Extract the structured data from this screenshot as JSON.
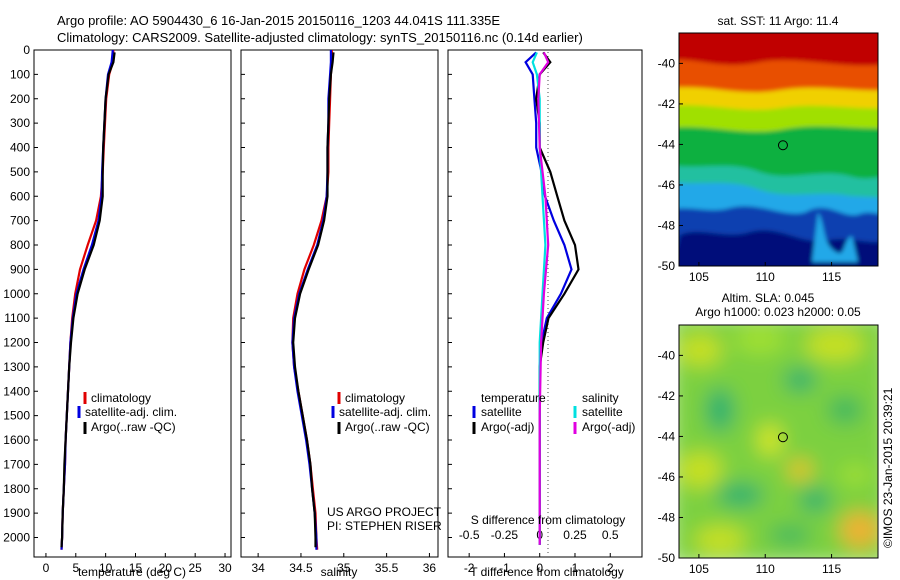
{
  "title_line1": "Argo profile: AO 5904430_6 16-Jan-2015 20150116_1203 44.041S 111.335E",
  "title_line2": "Climatology: CARS2009. Satellite-adjusted climatology: synTS_20150116.nc (0.14d earlier)",
  "sst_title": "sat. SST: 11 Argo: 11.4",
  "sla_title1": "Altim. SLA: 0.045",
  "sla_title2": "Argo h1000: 0.023 h2000: 0.05",
  "watermark": "©IMOS 23-Jan-2015 20:39:21",
  "project_line1": "US ARGO PROJECT",
  "project_line2": "PI: STEPHEN RISER",
  "legend_profile": [
    "climatology",
    "satellite-adj. clim.",
    "Argo(..raw -QC)"
  ],
  "legend_diff_headers": [
    "temperature",
    "salinity"
  ],
  "legend_diff_items": [
    "satellite",
    "Argo(-adj)",
    "satellite",
    "Argo(-adj)"
  ],
  "colors": {
    "climatology": "#e00000",
    "satellite": "#0000e0",
    "argo": "#000000",
    "sal_sat": "#00e0e0",
    "sal_argo": "#e000e0"
  },
  "chart_data": [
    {
      "type": "line",
      "xlabel": "temperature (deg C)",
      "ylabel": "",
      "xlim": [
        -2,
        31
      ],
      "ylim": [
        2080,
        0
      ],
      "xticks": [
        "0",
        "5",
        "10",
        "15",
        "20",
        "25",
        "30"
      ],
      "yticks": [
        "0",
        "100",
        "200",
        "300",
        "400",
        "500",
        "600",
        "700",
        "800",
        "900",
        "1000",
        "1100",
        "1200",
        "1300",
        "1400",
        "1500",
        "1600",
        "1700",
        "1800",
        "1900",
        "2000"
      ],
      "series": [
        {
          "name": "climatology",
          "points": [
            [
              11.3,
              0
            ],
            [
              11.2,
              50
            ],
            [
              10.6,
              100
            ],
            [
              10.1,
              200
            ],
            [
              9.9,
              300
            ],
            [
              9.7,
              400
            ],
            [
              9.5,
              500
            ],
            [
              9.2,
              600
            ],
            [
              8.4,
              700
            ],
            [
              7.0,
              800
            ],
            [
              5.7,
              900
            ],
            [
              4.9,
              1000
            ],
            [
              4.4,
              1100
            ],
            [
              4.1,
              1200
            ],
            [
              3.9,
              1300
            ],
            [
              3.7,
              1400
            ],
            [
              3.5,
              1500
            ],
            [
              3.3,
              1600
            ],
            [
              3.2,
              1700
            ],
            [
              3.0,
              1800
            ],
            [
              2.8,
              1900
            ],
            [
              2.7,
              2000
            ],
            [
              2.6,
              2050
            ]
          ]
        },
        {
          "name": "satellite-adj. clim.",
          "points": [
            [
              11.2,
              0
            ],
            [
              11.0,
              50
            ],
            [
              10.4,
              100
            ],
            [
              10.0,
              200
            ],
            [
              9.8,
              300
            ],
            [
              9.6,
              400
            ],
            [
              9.4,
              500
            ],
            [
              9.3,
              600
            ],
            [
              8.8,
              700
            ],
            [
              7.7,
              800
            ],
            [
              6.3,
              900
            ],
            [
              5.1,
              1000
            ],
            [
              4.5,
              1100
            ],
            [
              4.1,
              1200
            ],
            [
              3.9,
              1300
            ],
            [
              3.7,
              1400
            ],
            [
              3.5,
              1500
            ],
            [
              3.3,
              1600
            ],
            [
              3.2,
              1700
            ],
            [
              3.0,
              1800
            ],
            [
              2.8,
              1900
            ],
            [
              2.7,
              2000
            ],
            [
              2.6,
              2050
            ]
          ]
        },
        {
          "name": "Argo(..raw -QC)",
          "points": [
            [
              11.5,
              10
            ],
            [
              11.3,
              50
            ],
            [
              10.5,
              100
            ],
            [
              10.0,
              200
            ],
            [
              9.8,
              300
            ],
            [
              9.6,
              400
            ],
            [
              9.5,
              500
            ],
            [
              9.5,
              600
            ],
            [
              9.0,
              700
            ],
            [
              8.0,
              800
            ],
            [
              6.5,
              900
            ],
            [
              5.3,
              1000
            ],
            [
              4.6,
              1100
            ],
            [
              4.2,
              1200
            ],
            [
              3.9,
              1300
            ],
            [
              3.7,
              1400
            ],
            [
              3.5,
              1500
            ],
            [
              3.3,
              1600
            ],
            [
              3.1,
              1700
            ],
            [
              3.0,
              1800
            ],
            [
              2.8,
              1900
            ],
            [
              2.7,
              2000
            ],
            [
              2.6,
              2040
            ]
          ]
        }
      ]
    },
    {
      "type": "line",
      "xlabel": "salinity",
      "ylabel": "",
      "xlim": [
        33.8,
        36.1
      ],
      "ylim": [
        2080,
        0
      ],
      "xticks": [
        "34",
        "34.5",
        "35",
        "35.5",
        "36"
      ],
      "series": [
        {
          "name": "climatology",
          "points": [
            [
              34.86,
              0
            ],
            [
              34.86,
              50
            ],
            [
              34.85,
              100
            ],
            [
              34.84,
              200
            ],
            [
              34.83,
              300
            ],
            [
              34.82,
              400
            ],
            [
              34.82,
              500
            ],
            [
              34.8,
              600
            ],
            [
              34.74,
              700
            ],
            [
              34.65,
              800
            ],
            [
              34.54,
              900
            ],
            [
              34.46,
              1000
            ],
            [
              34.41,
              1100
            ],
            [
              34.4,
              1200
            ],
            [
              34.42,
              1300
            ],
            [
              34.47,
              1400
            ],
            [
              34.52,
              1500
            ],
            [
              34.57,
              1600
            ],
            [
              34.61,
              1700
            ],
            [
              34.64,
              1800
            ],
            [
              34.67,
              1900
            ],
            [
              34.68,
              2000
            ],
            [
              34.69,
              2050
            ]
          ]
        },
        {
          "name": "satellite-adj. clim.",
          "points": [
            [
              34.85,
              0
            ],
            [
              34.85,
              50
            ],
            [
              34.84,
              100
            ],
            [
              34.82,
              200
            ],
            [
              34.82,
              300
            ],
            [
              34.81,
              400
            ],
            [
              34.81,
              500
            ],
            [
              34.8,
              600
            ],
            [
              34.76,
              700
            ],
            [
              34.69,
              800
            ],
            [
              34.58,
              900
            ],
            [
              34.48,
              1000
            ],
            [
              34.42,
              1100
            ],
            [
              34.4,
              1200
            ],
            [
              34.42,
              1300
            ],
            [
              34.46,
              1400
            ],
            [
              34.51,
              1500
            ],
            [
              34.56,
              1600
            ],
            [
              34.6,
              1700
            ],
            [
              34.63,
              1800
            ],
            [
              34.66,
              1900
            ],
            [
              34.68,
              2000
            ],
            [
              34.68,
              2050
            ]
          ]
        },
        {
          "name": "Argo(..raw -QC)",
          "points": [
            [
              34.88,
              10
            ],
            [
              34.87,
              50
            ],
            [
              34.85,
              100
            ],
            [
              34.83,
              200
            ],
            [
              34.82,
              300
            ],
            [
              34.81,
              400
            ],
            [
              34.81,
              500
            ],
            [
              34.81,
              600
            ],
            [
              34.77,
              700
            ],
            [
              34.7,
              800
            ],
            [
              34.59,
              900
            ],
            [
              34.49,
              1000
            ],
            [
              34.43,
              1100
            ],
            [
              34.41,
              1200
            ],
            [
              34.43,
              1300
            ],
            [
              34.47,
              1400
            ],
            [
              34.52,
              1500
            ],
            [
              34.57,
              1600
            ],
            [
              34.61,
              1700
            ],
            [
              34.63,
              1800
            ],
            [
              34.66,
              1900
            ],
            [
              34.67,
              2000
            ],
            [
              34.67,
              2040
            ]
          ]
        }
      ]
    },
    {
      "type": "line",
      "xlabel": "T difference from climatology",
      "x2label": "S difference from climatology",
      "xlim": [
        -2.6,
        2.9
      ],
      "ylim": [
        2080,
        0
      ],
      "xticks": [
        "-2",
        "-1",
        "0",
        "1",
        "2"
      ],
      "x2ticks": [
        "-0.5",
        "-0.25",
        "0",
        "0.25",
        "0.5"
      ],
      "series": [
        {
          "name": "temperature satellite",
          "points": [
            [
              -0.1,
              10
            ],
            [
              -0.4,
              50
            ],
            [
              -0.2,
              100
            ],
            [
              -0.15,
              200
            ],
            [
              -0.1,
              300
            ],
            [
              -0.1,
              400
            ],
            [
              0.05,
              500
            ],
            [
              0.15,
              600
            ],
            [
              0.4,
              700
            ],
            [
              0.7,
              800
            ],
            [
              0.9,
              900
            ],
            [
              0.6,
              1000
            ],
            [
              0.2,
              1100
            ],
            [
              0.05,
              1200
            ],
            [
              0.0,
              1300
            ],
            [
              0.0,
              1500
            ],
            [
              0.0,
              1700
            ],
            [
              0.0,
              1900
            ],
            [
              0.0,
              2030
            ]
          ]
        },
        {
          "name": "temperature Argo(-adj)",
          "points": [
            [
              0.1,
              10
            ],
            [
              0.3,
              50
            ],
            [
              0.0,
              100
            ],
            [
              -0.1,
              200
            ],
            [
              0.0,
              300
            ],
            [
              0.0,
              400
            ],
            [
              0.3,
              500
            ],
            [
              0.5,
              600
            ],
            [
              0.7,
              700
            ],
            [
              1.0,
              800
            ],
            [
              1.1,
              900
            ],
            [
              0.7,
              1000
            ],
            [
              0.25,
              1100
            ],
            [
              0.1,
              1200
            ],
            [
              0.0,
              1300
            ],
            [
              0.0,
              1500
            ],
            [
              0.0,
              1700
            ],
            [
              0.0,
              1900
            ],
            [
              0.0,
              2030
            ]
          ]
        },
        {
          "name": "salinity satellite",
          "points": [
            [
              -0.02,
              10
            ],
            [
              -0.05,
              50
            ],
            [
              -0.02,
              100
            ],
            [
              0.0,
              200
            ],
            [
              0.0,
              400
            ],
            [
              0.02,
              600
            ],
            [
              0.04,
              800
            ],
            [
              0.02,
              1000
            ],
            [
              0.0,
              1200
            ],
            [
              0.0,
              1500
            ],
            [
              0.0,
              1800
            ],
            [
              0.0,
              2030
            ]
          ]
        },
        {
          "name": "salinity Argo(-adj)",
          "points": [
            [
              0.03,
              10
            ],
            [
              0.06,
              50
            ],
            [
              0.0,
              100
            ],
            [
              -0.01,
              200
            ],
            [
              0.0,
              400
            ],
            [
              0.04,
              600
            ],
            [
              0.06,
              800
            ],
            [
              0.03,
              1000
            ],
            [
              0.01,
              1200
            ],
            [
              0.0,
              1500
            ],
            [
              0.0,
              1800
            ],
            [
              0.0,
              2030
            ]
          ]
        }
      ]
    },
    {
      "type": "heatmap",
      "title": "sat. SST: 11 Argo: 11.4",
      "xlim": [
        103.5,
        118.5
      ],
      "ylim": [
        -50,
        -38.5
      ],
      "xticks": [
        "105",
        "110",
        "115"
      ],
      "yticks": [
        "-40",
        "-42",
        "-44",
        "-46",
        "-48",
        "-50"
      ],
      "argo_position": [
        111.335,
        -44.041
      ]
    },
    {
      "type": "heatmap",
      "title": "Altim. SLA: 0.045",
      "xlim": [
        103.5,
        118.5
      ],
      "ylim": [
        -50,
        -38.5
      ],
      "xticks": [
        "105",
        "110",
        "115"
      ],
      "yticks": [
        "-40",
        "-42",
        "-44",
        "-46",
        "-48",
        "-50"
      ],
      "argo_position": [
        111.335,
        -44.041
      ]
    }
  ]
}
